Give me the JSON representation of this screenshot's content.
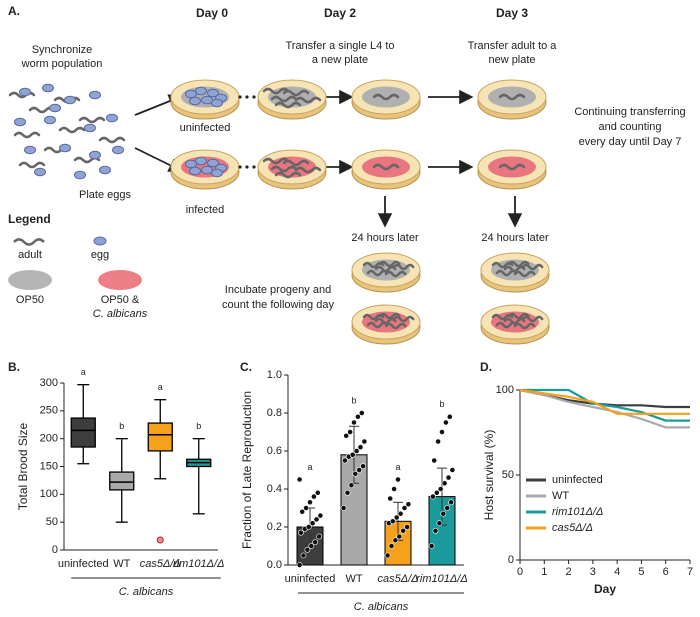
{
  "diagram": {
    "label": "A.",
    "sync": [
      "Synchronize",
      "worm population"
    ],
    "plate_eggs": "Plate eggs",
    "days": [
      "Day 0",
      "Day 2",
      "Day 3"
    ],
    "day2_note": [
      "Transfer a single L4 to",
      "a new plate"
    ],
    "day3_note": [
      "Transfer adult to a",
      "new plate"
    ],
    "uninfected": "uninfected",
    "infected": "infected",
    "continuing": [
      "Continuing transferring",
      "and counting",
      "every day until Day 7"
    ],
    "later": [
      "24 hours later",
      "24 hours later"
    ],
    "incubate": [
      "Incubate progeny and",
      "count the following day"
    ],
    "legend": {
      "title": "Legend",
      "adult": "adult",
      "egg": "egg",
      "op50": "OP50",
      "op50_ca": [
        "OP50 &",
        "C. albicans"
      ]
    }
  },
  "chart_data": [
    {
      "type": "box",
      "panel": "B.",
      "ylabel": "Total Brood Size",
      "categories": [
        "uninfected",
        "WT",
        "cas5Δ/Δ",
        "rim101Δ/Δ"
      ],
      "group_label": "C. albicans",
      "letters": [
        "a",
        "b",
        "a",
        "b"
      ],
      "colors": [
        "#3d3d3d",
        "#a9a9a9",
        "#f5a11c",
        "#1a9a9a"
      ],
      "boxes": [
        {
          "min": 155,
          "q1": 185,
          "median": 215,
          "q3": 237,
          "max": 297,
          "outliers": []
        },
        {
          "min": 50,
          "q1": 108,
          "median": 122,
          "q3": 140,
          "max": 200,
          "outliers": []
        },
        {
          "min": 128,
          "q1": 178,
          "median": 207,
          "q3": 228,
          "max": 270,
          "outliers": [
            18
          ]
        },
        {
          "min": 65,
          "q1": 150,
          "median": 157,
          "q3": 163,
          "max": 200,
          "outliers": []
        }
      ],
      "ylim": [
        0,
        300
      ],
      "yticks": [
        0,
        50,
        100,
        150,
        200,
        250,
        300
      ]
    },
    {
      "type": "bar",
      "panel": "C.",
      "ylabel": "Fraction of Late Reproduction",
      "categories": [
        "uninfected",
        "WT",
        "cas5Δ/Δ",
        "rim101Δ/Δ"
      ],
      "group_label": "C. albicans",
      "letters": [
        "a",
        "b",
        "a",
        "b"
      ],
      "colors": [
        "#3d3d3d",
        "#a9a9a9",
        "#f5a11c",
        "#1a9a9a"
      ],
      "values": [
        0.2,
        0.58,
        0.23,
        0.36
      ],
      "errors": [
        0.1,
        0.15,
        0.1,
        0.15
      ],
      "points": [
        [
          0.0,
          0.05,
          0.08,
          0.1,
          0.12,
          0.15,
          0.17,
          0.19,
          0.2,
          0.22,
          0.24,
          0.26,
          0.28,
          0.3,
          0.33,
          0.36,
          0.38,
          0.45
        ],
        [
          0.3,
          0.38,
          0.42,
          0.48,
          0.5,
          0.52,
          0.55,
          0.57,
          0.58,
          0.6,
          0.62,
          0.65,
          0.68,
          0.7,
          0.75,
          0.78,
          0.8
        ],
        [
          0.05,
          0.1,
          0.13,
          0.15,
          0.18,
          0.2,
          0.22,
          0.23,
          0.25,
          0.27,
          0.3,
          0.32,
          0.35,
          0.4,
          0.45
        ],
        [
          0.1,
          0.18,
          0.22,
          0.27,
          0.3,
          0.33,
          0.36,
          0.38,
          0.4,
          0.43,
          0.46,
          0.5,
          0.55,
          0.65,
          0.7,
          0.75,
          0.78
        ]
      ],
      "ylim": [
        0,
        1
      ],
      "yticks": [
        {
          "value": 0,
          "label": "0.0"
        },
        0.2,
        0.4,
        0.6,
        0.8,
        {
          "value": 1,
          "label": "1.0"
        }
      ]
    },
    {
      "type": "line",
      "panel": "D.",
      "ylabel": "Host survival (%)",
      "xlabel": "Day",
      "x": [
        0,
        1,
        2,
        3,
        4,
        5,
        6,
        7
      ],
      "series": [
        {
          "name": "uninfected",
          "color": "#3d3d3d",
          "values": [
            100,
            97,
            94,
            92,
            91,
            91,
            90,
            90
          ]
        },
        {
          "name": "WT",
          "color": "#a9a9a9",
          "values": [
            100,
            97,
            93,
            90,
            87,
            83,
            78,
            78
          ]
        },
        {
          "name": "rim101Δ/Δ",
          "color": "#1a9a9a",
          "values": [
            100,
            100,
            100,
            92,
            90,
            87,
            82,
            82
          ]
        },
        {
          "name": "cas5Δ/Δ",
          "color": "#f5a11c",
          "values": [
            100,
            98,
            96,
            93,
            86,
            86,
            86,
            86
          ]
        }
      ],
      "xlim": [
        0,
        7
      ],
      "xticks": [
        0,
        1,
        2,
        3,
        4,
        5,
        6,
        7
      ],
      "ylim": [
        0,
        100
      ],
      "yticks": [
        0,
        50,
        100
      ]
    }
  ]
}
